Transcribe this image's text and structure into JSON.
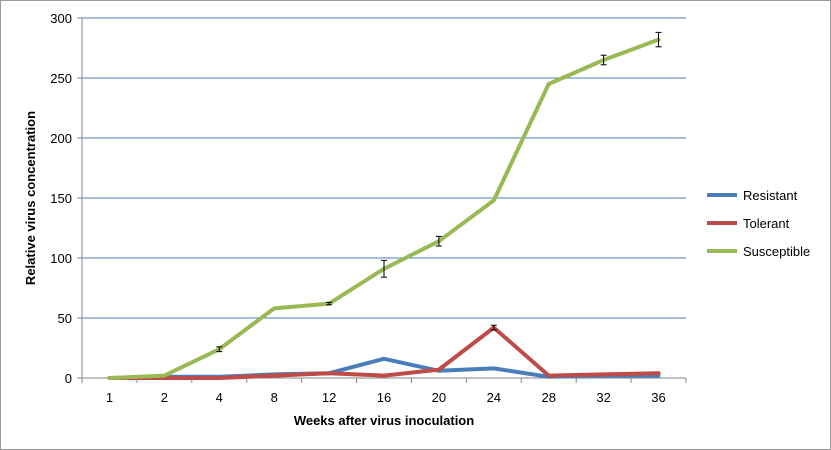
{
  "chart_data": {
    "type": "line",
    "title": "",
    "xlabel": "Weeks after virus inoculation",
    "ylabel": "Relative virus concentration",
    "categories": [
      "1",
      "2",
      "4",
      "8",
      "12",
      "16",
      "20",
      "24",
      "28",
      "32",
      "36"
    ],
    "ylim": [
      0,
      300
    ],
    "yticks": [
      0,
      50,
      100,
      150,
      200,
      250,
      300
    ],
    "grid": true,
    "legend_position": "right",
    "series": [
      {
        "name": "Resistant",
        "color": "#4a7ebb",
        "values": [
          0,
          1,
          1,
          3,
          4,
          16,
          6,
          8,
          1,
          2,
          2
        ],
        "errors": [
          0,
          0,
          0,
          0,
          0,
          0,
          0,
          0,
          0,
          0,
          0
        ]
      },
      {
        "name": "Tolerant",
        "color": "#be4b48",
        "values": [
          0,
          0,
          0,
          2,
          4,
          2,
          7,
          42,
          2,
          3,
          4
        ],
        "errors": [
          0,
          0,
          0,
          0,
          0,
          0,
          0,
          2,
          0,
          0,
          0
        ]
      },
      {
        "name": "Susceptible",
        "color": "#98b954",
        "values": [
          0,
          2,
          24,
          58,
          62,
          91,
          114,
          148,
          245,
          265,
          282
        ],
        "errors": [
          0,
          0,
          2,
          0,
          1,
          7,
          4,
          0,
          0,
          4,
          6
        ]
      }
    ]
  }
}
